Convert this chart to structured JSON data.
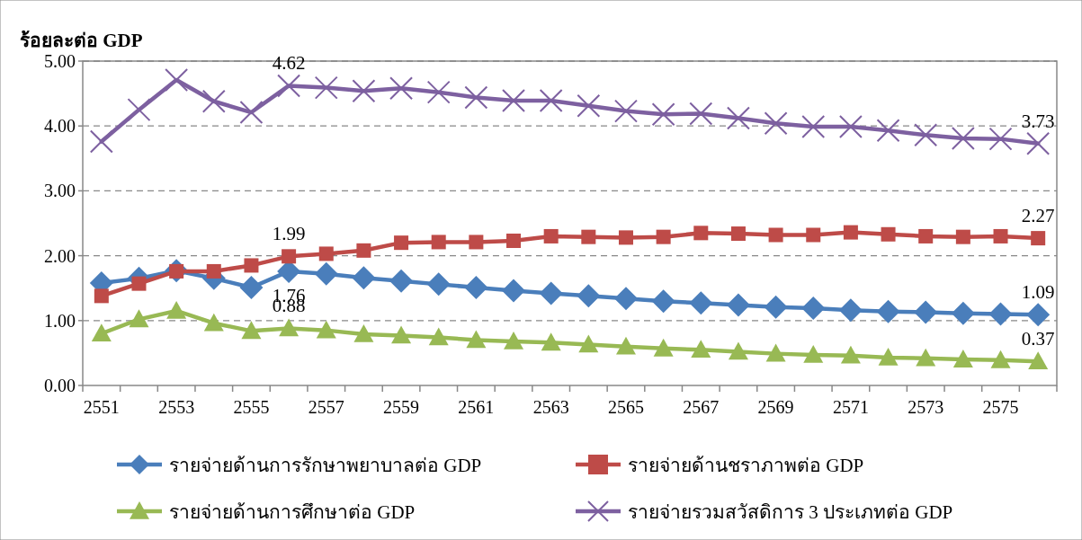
{
  "chart_data": {
    "type": "line",
    "ylabel": "ร้อยละต่อ GDP",
    "categories": [
      "2551",
      null,
      "2553",
      null,
      "2555",
      null,
      "2557",
      null,
      "2559",
      null,
      "2561",
      null,
      "2563",
      null,
      "2565",
      null,
      "2567",
      null,
      "2569",
      null,
      "2571",
      null,
      "2573",
      null,
      "2575",
      null
    ],
    "ylim": [
      0,
      5
    ],
    "yticks": [
      {
        "value": 0,
        "label": "0.00"
      },
      {
        "value": 1,
        "label": "1.00"
      },
      {
        "value": 2,
        "label": "2.00"
      },
      {
        "value": 3,
        "label": "3.00"
      },
      {
        "value": 4,
        "label": "4.00"
      },
      {
        "value": 5,
        "label": "5.00"
      }
    ],
    "grid": "y",
    "legend": "bottom",
    "series": [
      {
        "name": "รายจ่ายด้านการรักษาพยาบาลต่อ GDP",
        "color": "#4a7ebb",
        "marker": "diamond",
        "values": [
          1.58,
          1.65,
          1.77,
          1.65,
          1.51,
          1.76,
          1.72,
          1.66,
          1.61,
          1.56,
          1.51,
          1.46,
          1.42,
          1.38,
          1.34,
          1.3,
          1.27,
          1.24,
          1.21,
          1.19,
          1.16,
          1.14,
          1.13,
          1.11,
          1.1,
          1.09
        ],
        "value_labels": [
          null,
          null,
          null,
          null,
          null,
          "1.76",
          null,
          null,
          null,
          null,
          null,
          null,
          null,
          null,
          null,
          null,
          null,
          null,
          null,
          null,
          null,
          null,
          null,
          null,
          null,
          "1.09"
        ]
      },
      {
        "name": "รายจ่ายด้านชราภาพต่อ GDP",
        "color": "#be4b48",
        "marker": "square",
        "values": [
          1.38,
          1.57,
          1.76,
          1.76,
          1.85,
          1.99,
          2.03,
          2.08,
          2.2,
          2.21,
          2.21,
          2.23,
          2.3,
          2.29,
          2.28,
          2.29,
          2.35,
          2.34,
          2.32,
          2.32,
          2.36,
          2.33,
          2.3,
          2.29,
          2.3,
          2.27
        ],
        "value_labels": [
          null,
          null,
          null,
          null,
          null,
          "1.99",
          null,
          null,
          null,
          null,
          null,
          null,
          null,
          null,
          null,
          null,
          null,
          null,
          null,
          null,
          null,
          null,
          null,
          null,
          null,
          "2.27"
        ]
      },
      {
        "name": "รายจ่ายด้านการศึกษาต่อ GDP",
        "color": "#98b954",
        "marker": "triangle",
        "values": [
          0.8,
          1.02,
          1.15,
          0.96,
          0.84,
          0.88,
          0.85,
          0.79,
          0.77,
          0.74,
          0.7,
          0.68,
          0.66,
          0.63,
          0.6,
          0.57,
          0.55,
          0.52,
          0.49,
          0.47,
          0.46,
          0.43,
          0.42,
          0.4,
          0.39,
          0.37
        ],
        "value_labels": [
          null,
          null,
          null,
          null,
          null,
          "0.88",
          null,
          null,
          null,
          null,
          null,
          null,
          null,
          null,
          null,
          null,
          null,
          null,
          null,
          null,
          null,
          null,
          null,
          null,
          null,
          "0.37"
        ]
      },
      {
        "name": "รายจ่ายรวมสวัสดิการ 3 ประเภทต่อ GDP",
        "color": "#7d60a0",
        "marker": "cross",
        "values": [
          3.76,
          4.25,
          4.71,
          4.38,
          4.21,
          4.62,
          4.59,
          4.54,
          4.58,
          4.52,
          4.44,
          4.39,
          4.39,
          4.31,
          4.23,
          4.18,
          4.19,
          4.12,
          4.04,
          3.99,
          3.99,
          3.93,
          3.86,
          3.81,
          3.8,
          3.73
        ],
        "value_labels": [
          null,
          null,
          null,
          null,
          null,
          "4.62",
          null,
          null,
          null,
          null,
          null,
          null,
          null,
          null,
          null,
          null,
          null,
          null,
          null,
          null,
          null,
          null,
          null,
          null,
          null,
          "3.73"
        ]
      }
    ]
  }
}
